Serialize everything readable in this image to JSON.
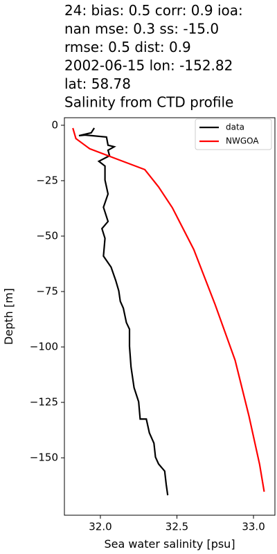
{
  "chart_data": {
    "type": "line",
    "title": [
      "24: bias: 0.5  corr: 0.9  ioa:",
      "nan  mse: 0.3  ss: -15.0",
      "rmse: 0.5  dist: 0.9",
      "2002-06-15 lon: -152.82",
      "lat: 58.78",
      "Salinity from CTD profile"
    ],
    "xlabel": "Sea water salinity [psu]",
    "ylabel": "Depth [m]",
    "xlim": [
      31.765,
      33.14
    ],
    "ylim": [
      -175.9,
      3.4
    ],
    "xticks": [
      {
        "value": 32.0,
        "label": "32.0"
      },
      {
        "value": 32.5,
        "label": "32.5"
      },
      {
        "value": 33.0,
        "label": "33.0"
      }
    ],
    "yticks": [
      0,
      {
        "value": -25,
        "label": "−25"
      },
      {
        "value": -50,
        "label": "−50"
      },
      {
        "value": -75,
        "label": "−75"
      },
      {
        "value": -100,
        "label": "−100"
      },
      {
        "value": -125,
        "label": "−125"
      },
      {
        "value": -150,
        "label": "−150"
      }
    ],
    "legend": "upper right",
    "series": [
      {
        "name": "data",
        "color": "#000000",
        "x": [
          31.96,
          31.94,
          31.86,
          31.9,
          32.04,
          32.05,
          32.09,
          32.05,
          32.06,
          31.99,
          32.03,
          32.03,
          32.05,
          32.02,
          32.05,
          32.01,
          32.03,
          32.02,
          32.07,
          32.1,
          32.12,
          32.13,
          32.15,
          32.17,
          32.19,
          32.19,
          32.2,
          32.22,
          32.25,
          32.26,
          32.3,
          32.32,
          32.35,
          32.36,
          32.38,
          32.42,
          32.43,
          32.44
        ],
        "y": [
          -1.25,
          -3.4,
          -4.7,
          -4.4,
          -5.3,
          -9,
          -9.7,
          -11.25,
          -13.75,
          -16.25,
          -18.4,
          -24.7,
          -31,
          -37,
          -43.4,
          -46.6,
          -51,
          -59,
          -64,
          -70,
          -74.7,
          -79.4,
          -82.5,
          -89,
          -92,
          -99.7,
          -109,
          -118.4,
          -124.7,
          -132.5,
          -132.5,
          -138.75,
          -143.4,
          -149.7,
          -152.8,
          -156,
          -162,
          -166.9
        ]
      },
      {
        "name": "NWGOA",
        "color": "#ff0000",
        "x": [
          31.82,
          31.84,
          31.93,
          32.11,
          32.29,
          32.38,
          32.47,
          32.61,
          32.75,
          32.88,
          32.97,
          33.04,
          33.07
        ],
        "y": [
          -1.25,
          -6,
          -10.6,
          -15.3,
          -20,
          -27.8,
          -37.2,
          -56,
          -81,
          -106,
          -131,
          -153,
          -165.3
        ]
      }
    ]
  }
}
